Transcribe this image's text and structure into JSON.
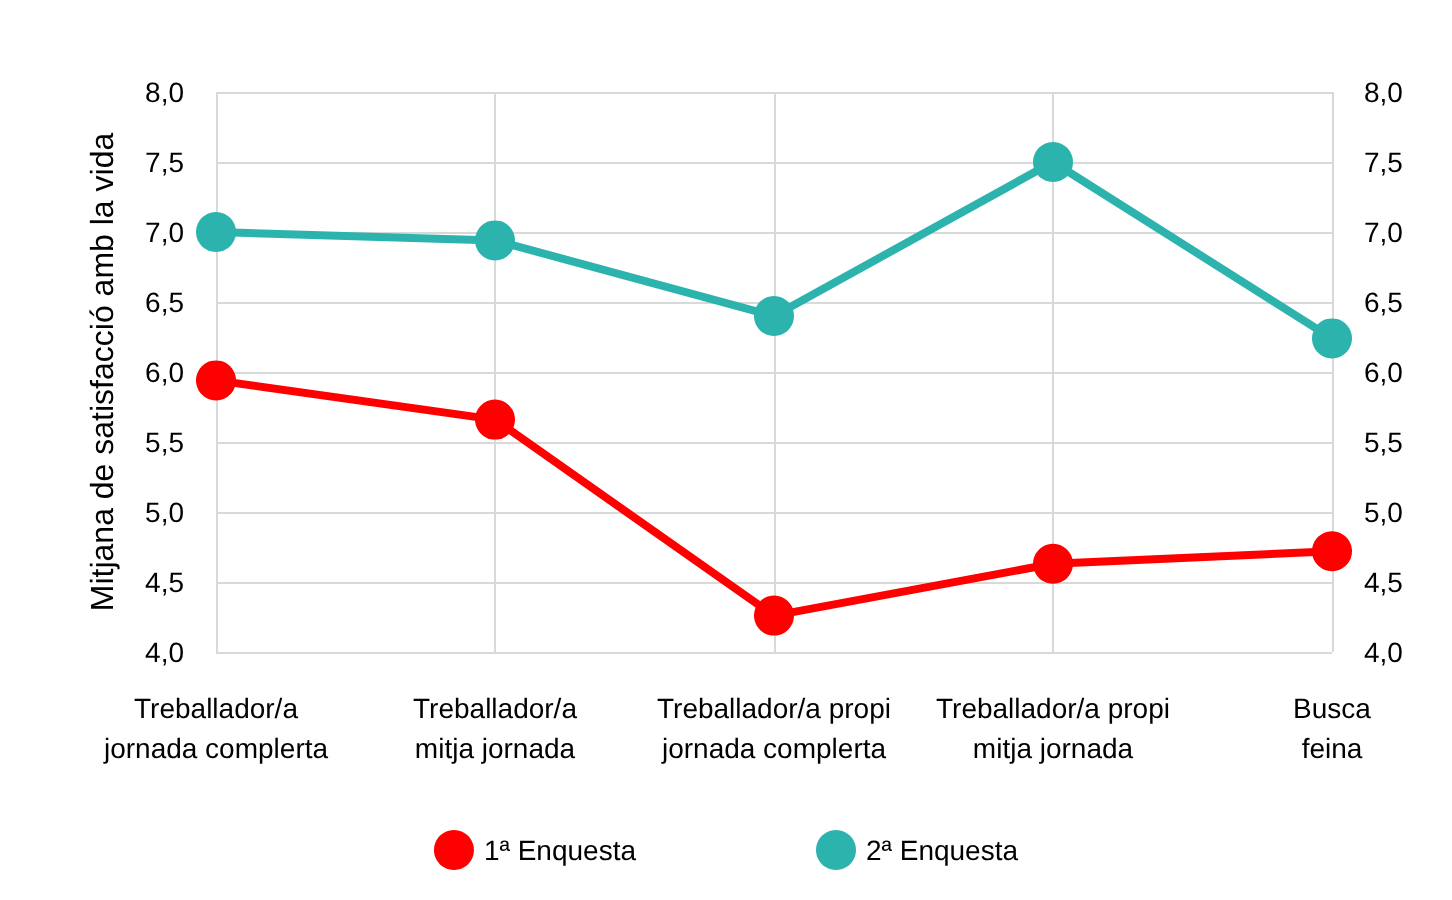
{
  "chart_data": {
    "type": "line",
    "ylabel": "Mitjana de satisfacció amb la vida",
    "categories": [
      "Treballador/a\njornada complerta",
      "Treballador/a\nmitja jornada",
      "Treballador/a propi\njornada complerta",
      "Treballador/a propi\nmitja jornada",
      "Busca\nfeina"
    ],
    "series": [
      {
        "name": "1ª Enquesta",
        "color": "#ff0000",
        "values": [
          5.94,
          5.66,
          4.26,
          4.63,
          4.72
        ]
      },
      {
        "name": "2ª Enquesta",
        "color": "#2db3ad",
        "values": [
          7.0,
          6.94,
          6.4,
          7.5,
          6.24
        ]
      }
    ],
    "ylim": [
      4.0,
      8.0
    ],
    "yticks": [
      {
        "value": 4.0,
        "label": "4,0"
      },
      {
        "value": 4.5,
        "label": "4,5"
      },
      {
        "value": 5.0,
        "label": "5,0"
      },
      {
        "value": 5.5,
        "label": "5,5"
      },
      {
        "value": 6.0,
        "label": "6,0"
      },
      {
        "value": 6.5,
        "label": "6,5"
      },
      {
        "value": 7.0,
        "label": "7,0"
      },
      {
        "value": 7.5,
        "label": "7,5"
      },
      {
        "value": 8.0,
        "label": "8,0"
      }
    ],
    "y2lim": [
      4.0,
      8.0
    ],
    "y2ticks": [
      {
        "value": 4.0,
        "label": "4,0"
      },
      {
        "value": 4.5,
        "label": "4,5"
      },
      {
        "value": 5.0,
        "label": "5,0"
      },
      {
        "value": 5.5,
        "label": "5,5"
      },
      {
        "value": 6.0,
        "label": "6,0"
      },
      {
        "value": 6.5,
        "label": "6,5"
      },
      {
        "value": 7.0,
        "label": "7,0"
      },
      {
        "value": 7.5,
        "label": "7,5"
      },
      {
        "value": 8.0,
        "label": "8,0"
      }
    ],
    "grid": true,
    "legend": "bottom",
    "marker": "circle",
    "line_style": "solid"
  }
}
